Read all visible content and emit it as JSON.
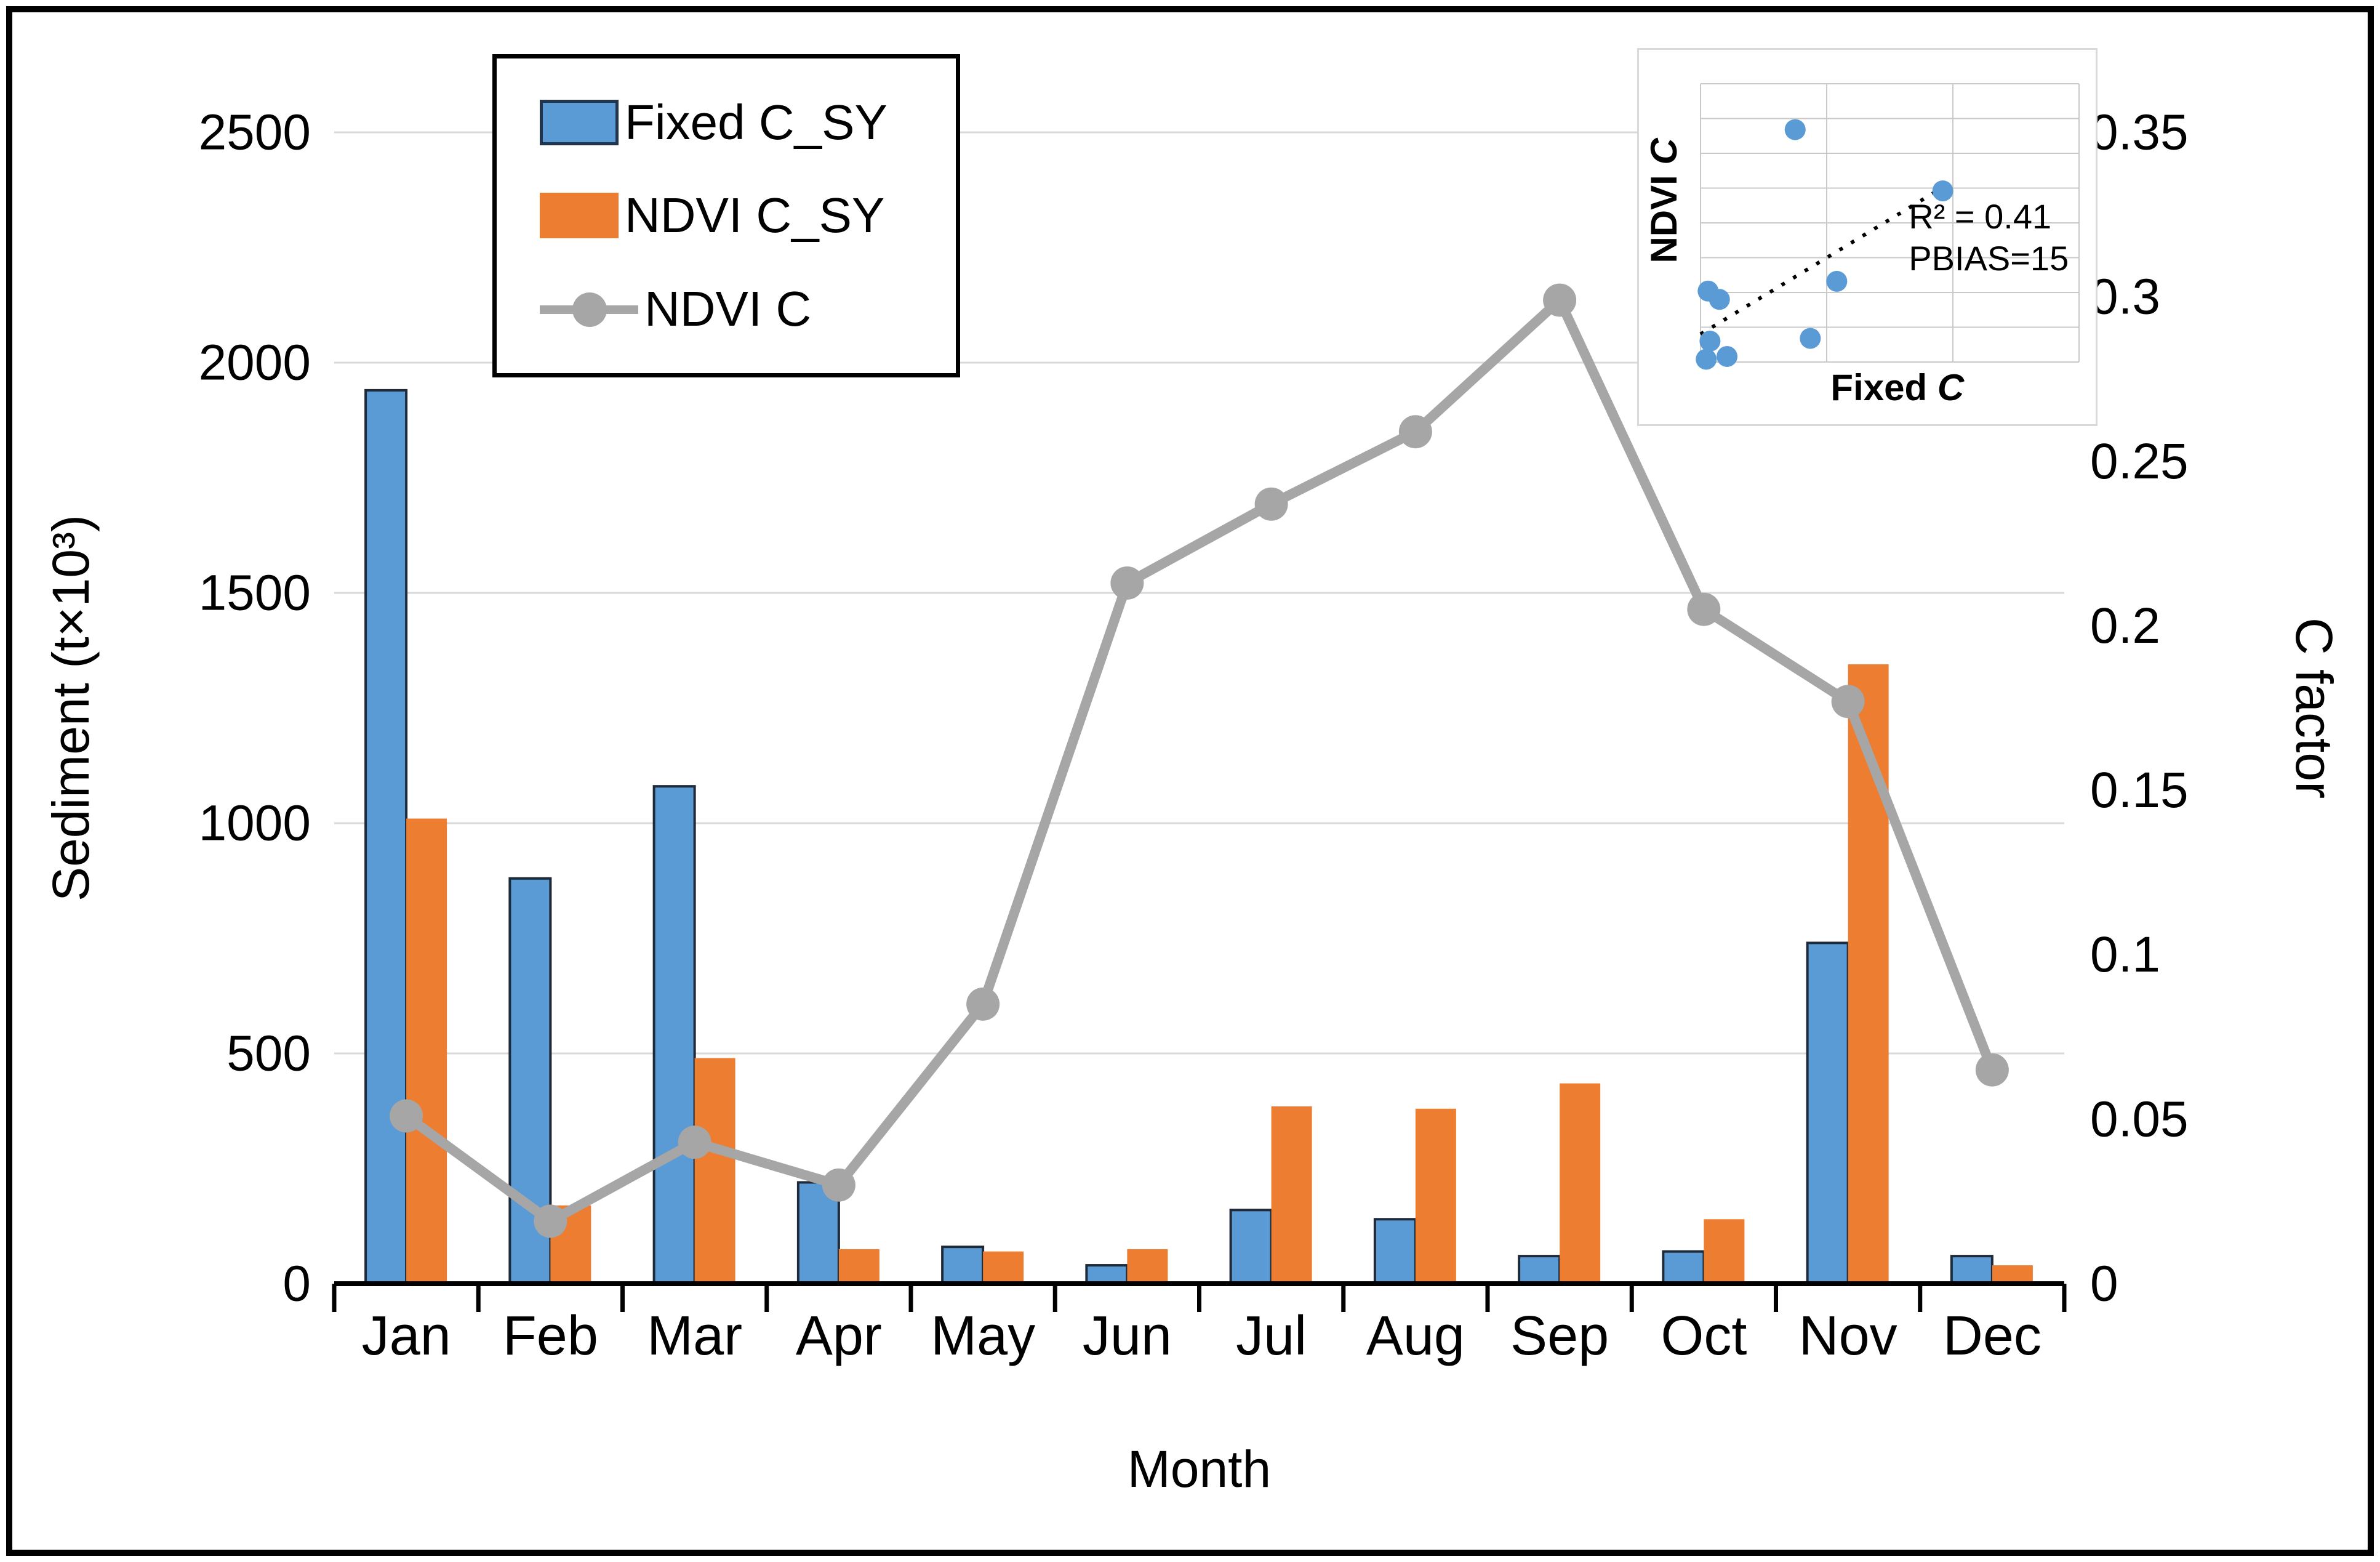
{
  "figure": {
    "background": "#ffffff",
    "border_color": "#000000"
  },
  "legend": {
    "items": [
      {
        "label": "Fixed C_SY",
        "type": "bar",
        "color": "#5B9BD5"
      },
      {
        "label": "NDVI C_SY",
        "type": "bar",
        "color": "#ED7D31"
      },
      {
        "label": "NDVI C",
        "type": "line",
        "color": "#A6A6A6"
      }
    ]
  },
  "chart_data": {
    "type": "combo",
    "categories": [
      "Jan",
      "Feb",
      "Mar",
      "Apr",
      "May",
      "Jun",
      "Jul",
      "Aug",
      "Sep",
      "Oct",
      "Nov",
      "Dec"
    ],
    "series": [
      {
        "name": "Fixed C_SY",
        "type": "bar",
        "axis": "left",
        "color": "#5B9BD5",
        "outline": "#1f2a38",
        "values": [
          1940,
          880,
          1080,
          220,
          80,
          40,
          160,
          140,
          60,
          70,
          740,
          60
        ]
      },
      {
        "name": "NDVI C_SY",
        "type": "bar",
        "axis": "left",
        "color": "#ED7D31",
        "outline": "none",
        "values": [
          1010,
          170,
          490,
          75,
          70,
          75,
          385,
          380,
          435,
          140,
          1345,
          40
        ]
      },
      {
        "name": "NDVI C",
        "type": "line",
        "axis": "right",
        "color": "#A6A6A6",
        "values": [
          0.051,
          0.019,
          0.043,
          0.03,
          0.085,
          0.213,
          0.237,
          0.259,
          0.299,
          0.205,
          0.177,
          0.065
        ]
      }
    ],
    "left_axis": {
      "title": "Sediment (t×10³)",
      "min": 0,
      "max": 2500,
      "tick_step": 500,
      "ticks": [
        "0",
        "500",
        "1000",
        "1500",
        "2000",
        "2500"
      ]
    },
    "right_axis": {
      "title": "C factor",
      "min": 0,
      "max": 0.35,
      "tick_step": 0.05,
      "ticks": [
        "0",
        "0.05",
        "0.1",
        "0.15",
        "0.2",
        "0.25",
        "0.3",
        "0.35"
      ]
    },
    "x_axis": {
      "title": "Month"
    },
    "grid": "horizontal",
    "legend_position": "top-left",
    "inset": {
      "type": "scatter",
      "xlabel": "Fixed C",
      "ylabel": "NDVI C",
      "annotation_line1": "R² = 0.41",
      "annotation_line2": "PBIAS=15",
      "point_color": "#5B9BD5",
      "points_frac": [
        [
          0.25,
          0.835
        ],
        [
          0.64,
          0.615
        ],
        [
          0.02,
          0.255
        ],
        [
          0.05,
          0.225
        ],
        [
          0.36,
          0.29
        ],
        [
          0.025,
          0.075
        ],
        [
          0.015,
          0.01
        ],
        [
          0.07,
          0.02
        ],
        [
          0.29,
          0.085
        ]
      ],
      "trendline_frac": [
        [
          0.0,
          0.1
        ],
        [
          0.655,
          0.64
        ]
      ],
      "grid_cols": 3,
      "grid_rows": 8
    }
  }
}
